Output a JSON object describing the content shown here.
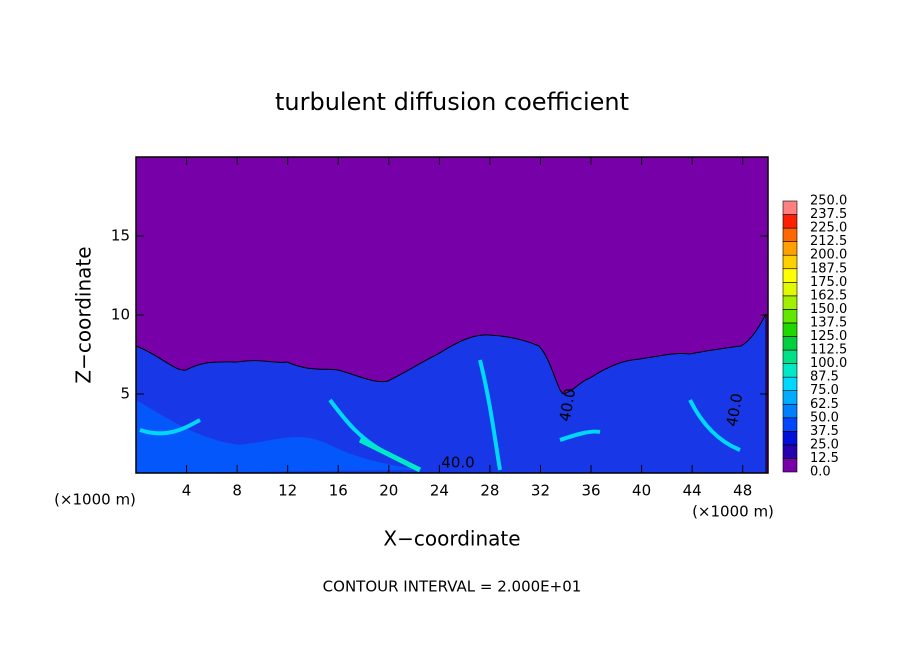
{
  "chart_data": {
    "type": "contour",
    "title": "turbulent diffusion coefficient",
    "xlabel": "X−coordinate",
    "ylabel": "Z−coordinate",
    "x_unit_label": "(×1000 m)",
    "footer": "CONTOUR INTERVAL = 2.000E+01",
    "contour_labels": [
      "40.0",
      "40.0",
      "40.0"
    ],
    "xlim": [
      0,
      50
    ],
    "ylim": [
      0,
      20
    ],
    "xticks": [
      4,
      8,
      12,
      16,
      20,
      24,
      28,
      32,
      36,
      40,
      44,
      48
    ],
    "yticks": [
      5,
      10,
      15
    ],
    "colorbar": {
      "ticks": [
        {
          "value": 0,
          "label": "0.0"
        },
        12.5,
        {
          "value": 25,
          "label": "25.0"
        },
        37.5,
        {
          "value": 50,
          "label": "50.0"
        },
        62.5,
        {
          "value": 75,
          "label": "75.0"
        },
        87.5,
        {
          "value": 100,
          "label": "100.0"
        },
        112.5,
        {
          "value": 125,
          "label": "125.0"
        },
        137.5,
        {
          "value": 150,
          "label": "150.0"
        },
        162.5,
        {
          "value": 175,
          "label": "175.0"
        },
        187.5,
        {
          "value": 200,
          "label": "200.0"
        },
        212.5,
        {
          "value": 225,
          "label": "225.0"
        },
        237.5,
        {
          "value": 250,
          "label": "250.0"
        }
      ],
      "colors": [
        "#7800a8",
        "#2800b0",
        "#0010d8",
        "#0048ff",
        "#0080ff",
        "#00acff",
        "#00d8ff",
        "#00e8c8",
        "#00e088",
        "#00d040",
        "#20d800",
        "#60e800",
        "#a0f000",
        "#e0f800",
        "#ffff00",
        "#ffd000",
        "#ffa000",
        "#ff6800",
        "#ff2000",
        "#ff8080"
      ]
    }
  }
}
